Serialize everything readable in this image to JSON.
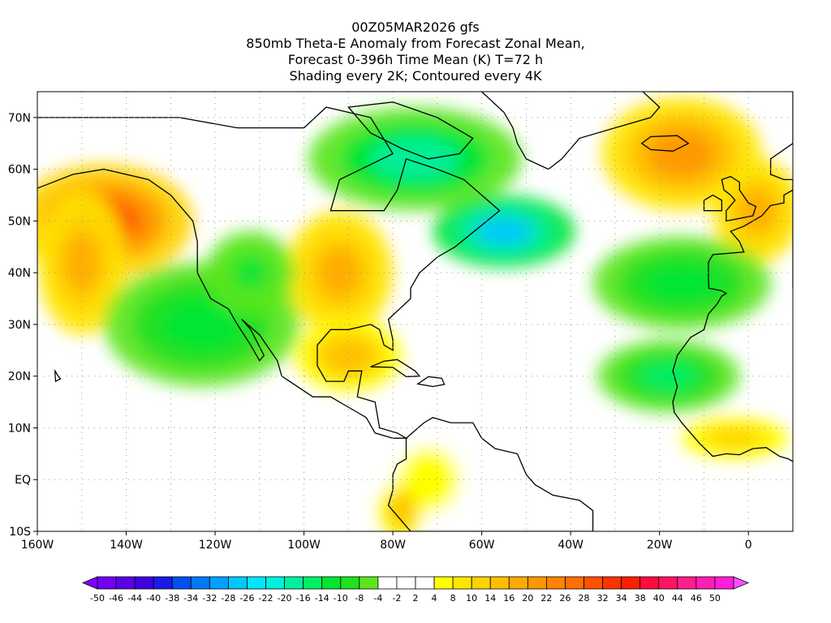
{
  "title": {
    "line1": "00Z05MAR2026 gfs",
    "line2": "850mb Theta-E Anomaly from Forecast Zonal Mean,",
    "line3": "Forecast 0-396h Time Mean (K) T=72 h",
    "line4": "Shading every 2K; Contoured every 4K"
  },
  "axes": {
    "lon_min": -160,
    "lon_max": 10,
    "lat_min": -10,
    "lat_max": 75,
    "lat_labels": [
      {
        "value": 70,
        "label": "70N"
      },
      {
        "value": 60,
        "label": "60N"
      },
      {
        "value": 50,
        "label": "50N"
      },
      {
        "value": 40,
        "label": "40N"
      },
      {
        "value": 30,
        "label": "30N"
      },
      {
        "value": 20,
        "label": "20N"
      },
      {
        "value": 10,
        "label": "10N"
      },
      {
        "value": 0,
        "label": "EQ"
      },
      {
        "value": -10,
        "label": "10S"
      }
    ],
    "lon_labels": [
      {
        "value": -160,
        "label": "160W"
      },
      {
        "value": -140,
        "label": "140W"
      },
      {
        "value": -120,
        "label": "120W"
      },
      {
        "value": -100,
        "label": "100W"
      },
      {
        "value": -80,
        "label": "80W"
      },
      {
        "value": -60,
        "label": "60W"
      },
      {
        "value": -40,
        "label": "40W"
      },
      {
        "value": -20,
        "label": "20W"
      },
      {
        "value": 0,
        "label": "0"
      }
    ],
    "grid": true
  },
  "anomaly_regions": [
    {
      "name": "gulf-of-alaska-warm",
      "lon": -145,
      "lat": 50,
      "rx": 20,
      "ry": 11,
      "value": 30
    },
    {
      "name": "north-pacific-warm-band",
      "lon": -150,
      "lat": 42,
      "rx": 10,
      "ry": 14,
      "value": 18
    },
    {
      "name": "hudson-bay-cold",
      "lon": -75,
      "lat": 62,
      "rx": 24,
      "ry": 10,
      "value": -16
    },
    {
      "name": "labrador-sea-cold",
      "lon": -55,
      "lat": 48,
      "rx": 16,
      "ry": 7,
      "value": -26
    },
    {
      "name": "central-us-warm",
      "lon": -92,
      "lat": 40,
      "rx": 12,
      "ry": 12,
      "value": 20
    },
    {
      "name": "gulf-mexico-warm",
      "lon": -90,
      "lat": 24,
      "rx": 12,
      "ry": 7,
      "value": 16
    },
    {
      "name": "eastern-pacific-cold",
      "lon": -123,
      "lat": 30,
      "rx": 22,
      "ry": 12,
      "value": -12
    },
    {
      "name": "west-us-cold",
      "lon": -112,
      "lat": 40,
      "rx": 10,
      "ry": 8,
      "value": -10
    },
    {
      "name": "greenland-east-warm",
      "lon": -15,
      "lat": 63,
      "rx": 18,
      "ry": 11,
      "value": 22
    },
    {
      "name": "western-europe-warm",
      "lon": 2,
      "lat": 52,
      "rx": 10,
      "ry": 10,
      "value": 20
    },
    {
      "name": "eastern-atlantic-cold",
      "lon": -15,
      "lat": 38,
      "rx": 20,
      "ry": 9,
      "value": -12
    },
    {
      "name": "tropical-atlantic-cold",
      "lon": -18,
      "lat": 20,
      "rx": 16,
      "ry": 7,
      "value": -14
    },
    {
      "name": "west-africa-warm",
      "lon": -3,
      "lat": 8,
      "rx": 12,
      "ry": 4,
      "value": 14
    },
    {
      "name": "north-south-america-warm",
      "lon": -72,
      "lat": 0,
      "rx": 10,
      "ry": 9,
      "value": 8
    },
    {
      "name": "south-america-orange",
      "lon": -78,
      "lat": -6,
      "rx": 5,
      "ry": 6,
      "value": 16
    }
  ],
  "colorbar": {
    "colors": [
      "#8000ff",
      "#7000f0",
      "#5c00e6",
      "#4000e0",
      "#1a1ae6",
      "#0050f0",
      "#0078f5",
      "#00a0ff",
      "#00c8ff",
      "#00e6ff",
      "#00f0dc",
      "#00f0a0",
      "#00f064",
      "#00e632",
      "#20e020",
      "#5ae61e",
      "#ffffff",
      "#ffffff",
      "#ffffff",
      "#ffff00",
      "#ffe600",
      "#ffd200",
      "#ffbe00",
      "#ffaa00",
      "#ff9600",
      "#ff8200",
      "#ff6e00",
      "#ff5000",
      "#ff3200",
      "#ff1e00",
      "#ff0a3c",
      "#ff1464",
      "#ff1e8c",
      "#ff1eb4",
      "#ff1edc",
      "#ff50ff"
    ],
    "labels": [
      "-50",
      "-46",
      "-44",
      "-40",
      "-38",
      "-34",
      "-32",
      "-28",
      "-26",
      "-22",
      "-20",
      "-16",
      "-14",
      "-10",
      "-8",
      "-4",
      "-2",
      "2",
      "4",
      "8",
      "10",
      "14",
      "16",
      "20",
      "22",
      "26",
      "28",
      "32",
      "34",
      "38",
      "40",
      "44",
      "46",
      "50"
    ]
  }
}
